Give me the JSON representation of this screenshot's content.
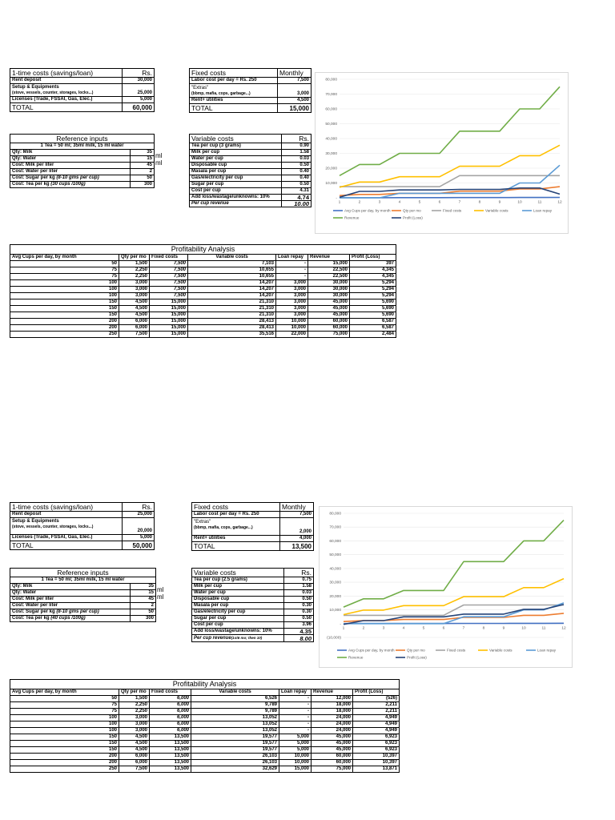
{
  "sheets": [
    {
      "one_time": {
        "title": "1-time costs (savings/loan)",
        "unit": "Rs.",
        "rows": [
          {
            "label": "Rent deposit",
            "value": "30,000"
          },
          {
            "label": "Setup & Equipments",
            "note": "(stove, vessels, counter, storages, locks...)",
            "value": "25,000"
          },
          {
            "label": "Licenses (Trade, FSSAI, Gas, Elec.)",
            "value": "5,000"
          }
        ],
        "total_label": "TOTAL",
        "total_value": "60,000"
      },
      "fixed": {
        "title": "Fixed costs",
        "unit": "Monthly",
        "rows": [
          {
            "label": "Labor cost per day = Rs. 250",
            "value": "7,500"
          },
          {
            "label": "\"Extras\"",
            "note": "(bbmp, mafia, cops, garbage...)",
            "value": "3,000"
          },
          {
            "label": "Rent+ utilities",
            "value": "4,500"
          }
        ],
        "total_label": "TOTAL",
        "total_value": "15,000"
      },
      "reference": {
        "title": "Reference inputs",
        "subtitle": "1 Tea = 50 ml; 35ml milk, 15 ml water",
        "rows": [
          {
            "label": "Qty: Milk",
            "value": "35",
            "unit": "ml"
          },
          {
            "label": "Qty: Water",
            "value": "15",
            "unit": "ml"
          },
          {
            "label": "Cost: Milk per liter",
            "value": "45",
            "unit": ""
          },
          {
            "label": "Cost: Water per liter",
            "value": "2",
            "unit": ""
          },
          {
            "label": "Cost: Sugar per kg",
            "italic": "(8-10 gms per cup)",
            "value": "50",
            "unit": ""
          },
          {
            "label": "Cost: Tea per kg",
            "italic": "(30 cups /100g)",
            "value": "300",
            "unit": ""
          }
        ]
      },
      "variable": {
        "title": "Variable costs",
        "unit": "Rs.",
        "rows": [
          {
            "label": "Tea per cup (3 grams)",
            "value": "0.90"
          },
          {
            "label": "Milk per cup",
            "value": "1.58"
          },
          {
            "label": "Water per cup",
            "value": "0.03"
          },
          {
            "label": "Disposable cup",
            "value": "0.50"
          },
          {
            "label": "Masala per cup",
            "value": "0.40"
          },
          {
            "label": "Gas/electricity per cup",
            "value": "0.40"
          },
          {
            "label": "Sugar per cup",
            "value": "0.50"
          },
          {
            "label": "Cost per cup",
            "value": "4.31"
          }
        ],
        "add_label": "Add loss/wastage/unknowns: 10%",
        "add_value": "4.74",
        "revenue_label": "Per cup revenue",
        "revenue_note": "",
        "revenue_value": "10.00"
      },
      "analysis": {
        "title": "Profitability Analysis",
        "headers": [
          "Avg Cups per day, by month",
          "Qty per mo",
          "Fixed costs",
          "Variable costs",
          "Loan repay",
          "Revenue",
          "Profit (Loss)"
        ],
        "rows": [
          [
            "50",
            "1,500",
            "7,500",
            "7,103",
            "-",
            "15,000",
            "397"
          ],
          [
            "75",
            "2,250",
            "7,500",
            "10,655",
            "-",
            "22,500",
            "4,345"
          ],
          [
            "75",
            "2,250",
            "7,500",
            "10,655",
            "-",
            "22,500",
            "4,345"
          ],
          [
            "100",
            "3,000",
            "7,500",
            "14,207",
            "3,000",
            "30,000",
            "5,294"
          ],
          [
            "100",
            "3,000",
            "7,500",
            "14,207",
            "3,000",
            "30,000",
            "5,294"
          ],
          [
            "100",
            "3,000",
            "7,500",
            "14,207",
            "3,000",
            "30,000",
            "5,294"
          ],
          [
            "150",
            "4,500",
            "15,000",
            "21,310",
            "3,000",
            "45,000",
            "5,690"
          ],
          [
            "150",
            "4,500",
            "15,000",
            "21,310",
            "3,000",
            "45,000",
            "5,690"
          ],
          [
            "150",
            "4,500",
            "15,000",
            "21,310",
            "3,000",
            "45,000",
            "5,690"
          ],
          [
            "200",
            "6,000",
            "15,000",
            "28,413",
            "10,000",
            "60,000",
            "6,587"
          ],
          [
            "200",
            "6,000",
            "15,000",
            "28,413",
            "10,000",
            "60,000",
            "6,587"
          ],
          [
            "250",
            "7,500",
            "15,000",
            "35,516",
            "22,000",
            "75,000",
            "2,484"
          ]
        ],
        "italic_fixed_rows": 6
      },
      "chart_ticks": [
        "80,000",
        "70,000",
        "60,000",
        "50,000",
        "40,000",
        "30,000",
        "20,000",
        "10,000",
        "-"
      ]
    },
    {
      "one_time": {
        "title": "1-time costs (savings/loan)",
        "unit": "Rs.",
        "rows": [
          {
            "label": "Rent deposit",
            "value": "25,000"
          },
          {
            "label": "Setup & Equipments",
            "note": "(stove, vessels, counter, storages, locks...)",
            "value": "20,000"
          },
          {
            "label": "Licenses (Trade, FSSAI, Gas, Elec.)",
            "value": "5,000"
          }
        ],
        "total_label": "TOTAL",
        "total_value": "50,000"
      },
      "fixed": {
        "title": "Fixed costs",
        "unit": "Monthly",
        "rows": [
          {
            "label": "Labor cost per day = Rs. 250",
            "value": "7,500"
          },
          {
            "label": "\"Extras\"",
            "note": "(bbmp, mafia, cops, garbage...)",
            "value": "2,000"
          },
          {
            "label": "Rent+ utilities",
            "value": "4,000"
          }
        ],
        "total_label": "TOTAL",
        "total_value": "13,500"
      },
      "reference": {
        "title": "Reference inputs",
        "subtitle": "1 Tea = 50 ml; 35ml milk, 15 ml water",
        "rows": [
          {
            "label": "Qty: Milk",
            "value": "35",
            "unit": "ml"
          },
          {
            "label": "Qty: Water",
            "value": "15",
            "unit": "ml"
          },
          {
            "label": "Cost: Milk per liter",
            "value": "45",
            "unit": ""
          },
          {
            "label": "Cost: Water per liter",
            "value": "2",
            "unit": ""
          },
          {
            "label": "Cost: Sugar per kg",
            "italic": "(8-10 gms per cup)",
            "value": "50",
            "unit": ""
          },
          {
            "label": "Cost: Tea per kg",
            "italic": "(40 cups /100g)",
            "value": "300",
            "unit": ""
          }
        ]
      },
      "variable": {
        "title": "Variable costs",
        "unit": "Rs.",
        "rows": [
          {
            "label": "Tea per cup (2.5 grams)",
            "value": "0.75"
          },
          {
            "label": "Milk per cup",
            "value": "1.58"
          },
          {
            "label": "Water per cup",
            "value": "0.03"
          },
          {
            "label": "Disposable cup",
            "value": "0.50"
          },
          {
            "label": "Masala per cup",
            "value": "0.30"
          },
          {
            "label": "Gas/electricity per cup",
            "value": "0.30"
          },
          {
            "label": "Sugar per cup",
            "value": "0.50"
          },
          {
            "label": "Cost per cup",
            "value": "3.96"
          }
        ],
        "add_label": "Add loss/wastage/unknowns: 10%",
        "add_value": "4.35",
        "revenue_label": "Per cup revenue",
        "revenue_note": "(1st6 mo; then 10)",
        "revenue_value": "8.00"
      },
      "analysis": {
        "title": "Profitability Analysis",
        "headers": [
          "Avg Cups per day, by month",
          "Qty per mo",
          "Fixed costs",
          "Variable costs",
          "Loan repay",
          "Revenue",
          "Profit (Loss)"
        ],
        "rows": [
          [
            "50",
            "1,500",
            "6,000",
            "6,526",
            "-",
            "12,000",
            "(526)"
          ],
          [
            "75",
            "2,250",
            "6,000",
            "9,789",
            "-",
            "18,000",
            "2,211"
          ],
          [
            "75",
            "2,250",
            "6,000",
            "9,789",
            "-",
            "18,000",
            "2,211"
          ],
          [
            "100",
            "3,000",
            "6,000",
            "13,052",
            "-",
            "24,000",
            "4,949"
          ],
          [
            "100",
            "3,000",
            "6,000",
            "13,052",
            "-",
            "24,000",
            "4,949"
          ],
          [
            "100",
            "3,000",
            "6,000",
            "13,052",
            "-",
            "24,000",
            "4,949"
          ],
          [
            "150",
            "4,500",
            "13,500",
            "19,577",
            "5,000",
            "45,000",
            "6,923"
          ],
          [
            "150",
            "4,500",
            "13,500",
            "19,577",
            "5,000",
            "45,000",
            "6,923"
          ],
          [
            "150",
            "4,500",
            "13,500",
            "19,577",
            "5,000",
            "45,000",
            "6,923"
          ],
          [
            "200",
            "6,000",
            "13,500",
            "26,103",
            "10,000",
            "60,000",
            "10,397"
          ],
          [
            "200",
            "6,000",
            "13,500",
            "26,103",
            "10,000",
            "60,000",
            "10,397"
          ],
          [
            "250",
            "7,500",
            "13,500",
            "32,629",
            "15,000",
            "75,000",
            "13,871"
          ]
        ],
        "italic_fixed_rows": 6
      },
      "chart_ticks": [
        "80,000",
        "70,000",
        "60,000",
        "50,000",
        "40,000",
        "30,000",
        "20,000",
        "10,000",
        "-",
        "(10,000)"
      ]
    }
  ],
  "chart_data": [
    {
      "type": "line",
      "title": "",
      "x": [
        1,
        2,
        3,
        4,
        5,
        6,
        7,
        8,
        9,
        10,
        11,
        12
      ],
      "ylim": [
        0,
        80000
      ],
      "legend": "bottom",
      "series": [
        {
          "name": "Avg Cups per day, by month",
          "color": "#4472c4",
          "values": [
            50,
            75,
            75,
            100,
            100,
            100,
            150,
            150,
            150,
            200,
            200,
            250
          ]
        },
        {
          "name": "Qty per mo",
          "color": "#ed7d31",
          "values": [
            1500,
            2250,
            2250,
            3000,
            3000,
            3000,
            4500,
            4500,
            4500,
            6000,
            6000,
            7500
          ]
        },
        {
          "name": "Fixed costs",
          "color": "#a5a5a5",
          "values": [
            7500,
            7500,
            7500,
            7500,
            7500,
            7500,
            15000,
            15000,
            15000,
            15000,
            15000,
            15000
          ]
        },
        {
          "name": "Variable costs",
          "color": "#ffc000",
          "values": [
            7103,
            10655,
            10655,
            14207,
            14207,
            14207,
            21310,
            21310,
            21310,
            28413,
            28413,
            35516
          ]
        },
        {
          "name": "Loan repay",
          "color": "#5b9bd5",
          "values": [
            0,
            0,
            0,
            3000,
            3000,
            3000,
            3000,
            3000,
            3000,
            10000,
            10000,
            22000
          ]
        },
        {
          "name": "Revenue",
          "color": "#70ad47",
          "values": [
            15000,
            22500,
            22500,
            30000,
            30000,
            30000,
            45000,
            45000,
            45000,
            60000,
            60000,
            75000
          ]
        },
        {
          "name": "Profit (Loss)",
          "color": "#264478",
          "values": [
            397,
            4345,
            4345,
            5294,
            5294,
            5294,
            5690,
            5690,
            5690,
            6587,
            6587,
            2484
          ]
        }
      ]
    },
    {
      "type": "line",
      "title": "",
      "x": [
        1,
        2,
        3,
        4,
        5,
        6,
        7,
        8,
        9,
        10,
        11,
        12
      ],
      "ylim": [
        -10000,
        80000
      ],
      "legend": "bottom",
      "series": [
        {
          "name": "Avg Cups per day, by month",
          "color": "#4472c4",
          "values": [
            50,
            75,
            75,
            100,
            100,
            100,
            150,
            150,
            150,
            200,
            200,
            250
          ]
        },
        {
          "name": "Qty per mo",
          "color": "#ed7d31",
          "values": [
            1500,
            2250,
            2250,
            3000,
            3000,
            3000,
            4500,
            4500,
            4500,
            6000,
            6000,
            7500
          ]
        },
        {
          "name": "Fixed costs",
          "color": "#a5a5a5",
          "values": [
            6000,
            6000,
            6000,
            6000,
            6000,
            6000,
            13500,
            13500,
            13500,
            13500,
            13500,
            13500
          ]
        },
        {
          "name": "Variable costs",
          "color": "#ffc000",
          "values": [
            6526,
            9789,
            9789,
            13052,
            13052,
            13052,
            19577,
            19577,
            19577,
            26103,
            26103,
            32629
          ]
        },
        {
          "name": "Loan repay",
          "color": "#5b9bd5",
          "values": [
            0,
            0,
            0,
            0,
            0,
            0,
            5000,
            5000,
            5000,
            10000,
            10000,
            15000
          ]
        },
        {
          "name": "Revenue",
          "color": "#70ad47",
          "values": [
            12000,
            18000,
            18000,
            24000,
            24000,
            24000,
            45000,
            45000,
            45000,
            60000,
            60000,
            75000
          ]
        },
        {
          "name": "Profit (Loss)",
          "color": "#264478",
          "values": [
            -526,
            2211,
            2211,
            4949,
            4949,
            4949,
            6923,
            6923,
            6923,
            10397,
            10397,
            13871
          ]
        }
      ]
    }
  ]
}
